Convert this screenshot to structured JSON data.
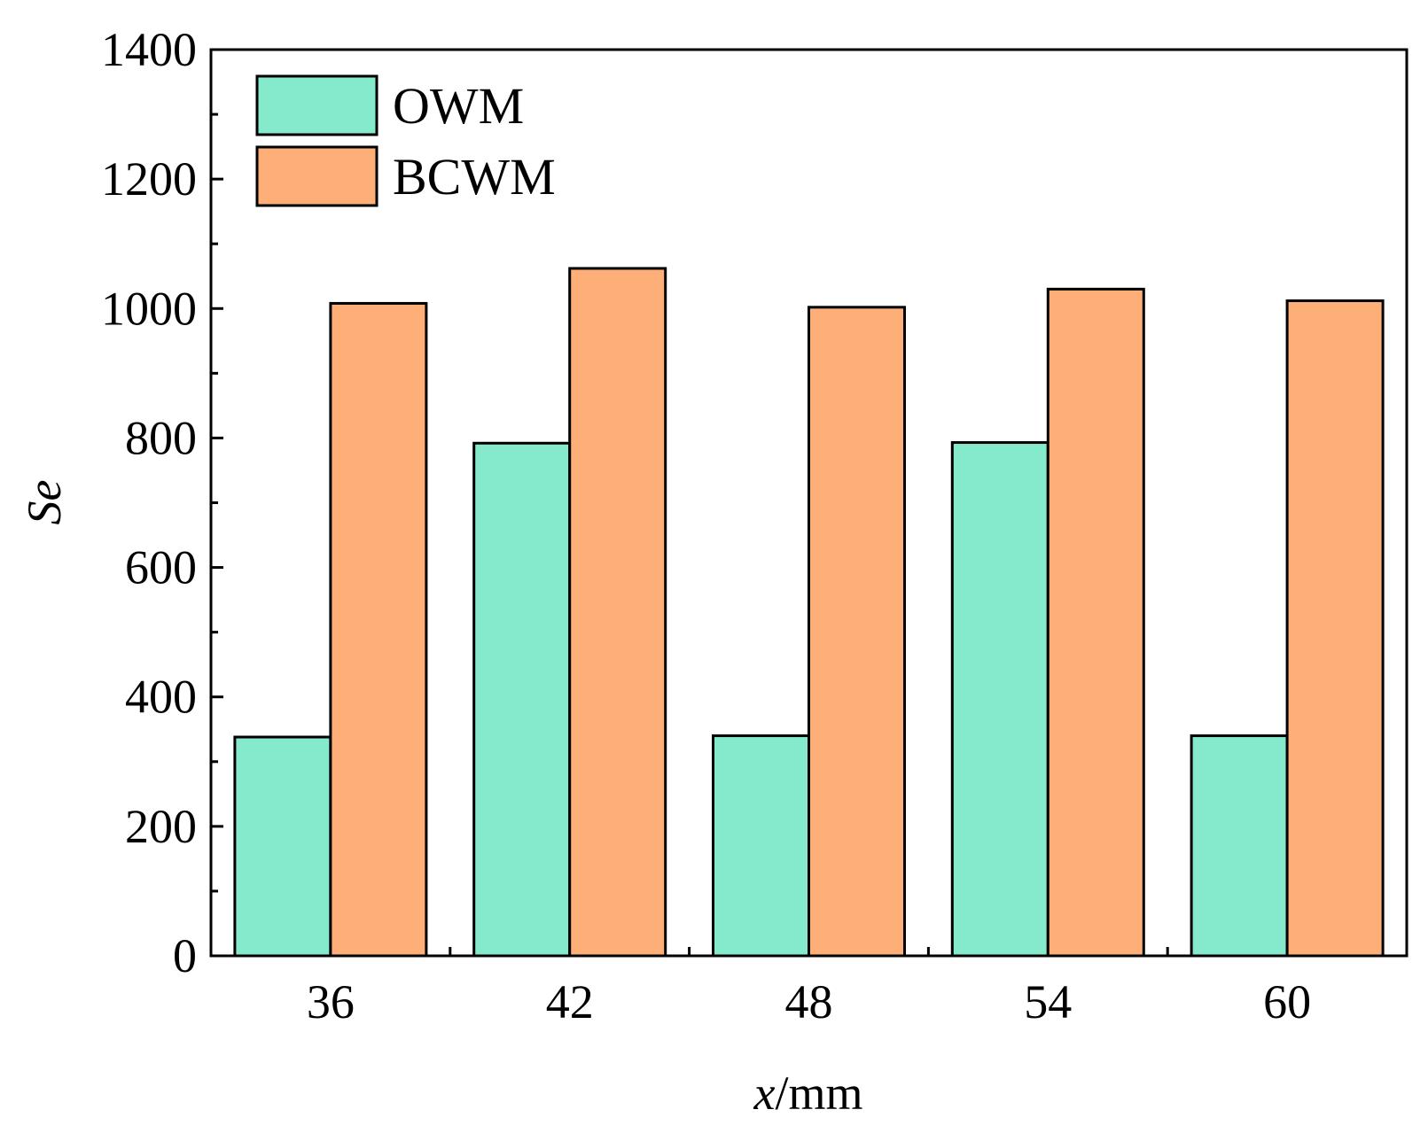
{
  "chart_data": {
    "type": "bar",
    "categories": [
      "36",
      "42",
      "48",
      "54",
      "60"
    ],
    "series": [
      {
        "name": "OWM",
        "values": [
          338,
          792,
          340,
          793,
          340
        ],
        "color": "#84EACB"
      },
      {
        "name": "BCWM",
        "values": [
          1008,
          1062,
          1002,
          1030,
          1012
        ],
        "color": "#FEAE77"
      }
    ],
    "title": "",
    "xlabel": {
      "italic": "x",
      "rest": "/mm"
    },
    "ylabel": "Se",
    "ylim": [
      0,
      1400
    ],
    "yticks": [
      0,
      200,
      400,
      600,
      800,
      1000,
      1200,
      1400
    ],
    "y_minor_step": 100,
    "grid": false,
    "legend_position": "top-left"
  }
}
